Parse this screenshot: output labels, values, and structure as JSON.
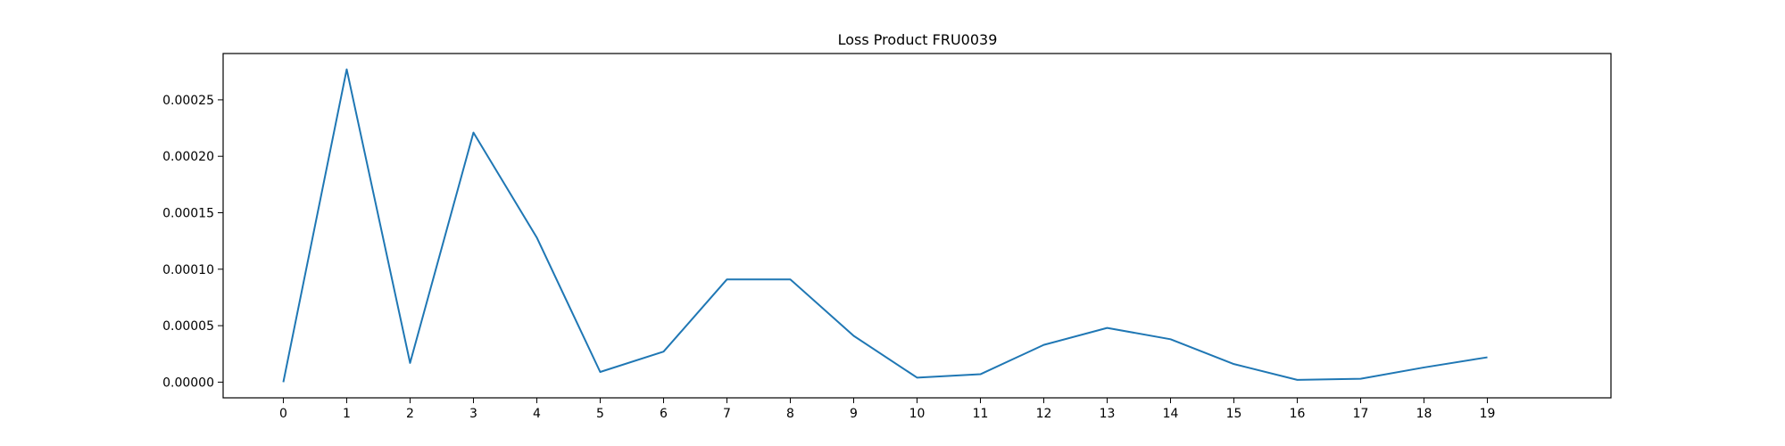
{
  "chart_data": {
    "type": "line",
    "title": "Loss Product FRU0039",
    "xlabel": "",
    "ylabel": "",
    "x": [
      0,
      1,
      2,
      3,
      4,
      5,
      6,
      7,
      8,
      9,
      10,
      11,
      12,
      13,
      14,
      15,
      16,
      17,
      18,
      19
    ],
    "series": [
      {
        "values": [
          0.0,
          0.000277,
          1.7e-05,
          0.000221,
          0.000128,
          9e-06,
          2.7e-05,
          9.1e-05,
          9.1e-05,
          4.1e-05,
          4e-06,
          7e-06,
          3.3e-05,
          4.8e-05,
          3.8e-05,
          1.6e-05,
          2e-06,
          3e-06,
          1.3e-05,
          2.2e-05
        ],
        "color": "#1f77b4"
      }
    ],
    "xlim": [
      -0.95,
      20.95
    ],
    "ylim": [
      -1.39e-05,
      0.000291
    ],
    "xticks": [
      0,
      1,
      2,
      3,
      4,
      5,
      6,
      7,
      8,
      9,
      10,
      11,
      12,
      13,
      14,
      15,
      16,
      17,
      18,
      19
    ],
    "yticks": [
      "0.00000",
      "0.00005",
      "0.00010",
      "0.00015",
      "0.00020",
      "0.00025"
    ],
    "grid": false,
    "legend": "none"
  }
}
